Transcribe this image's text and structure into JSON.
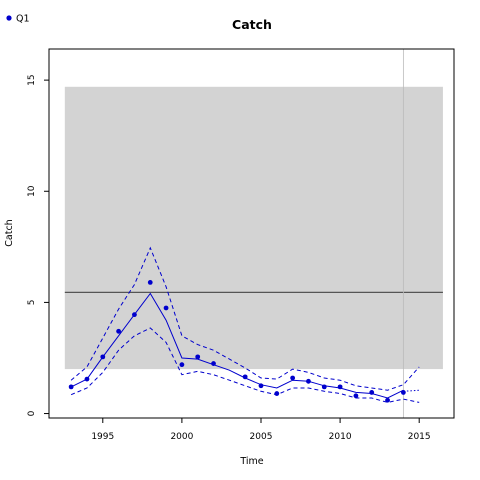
{
  "chart_data": {
    "type": "line",
    "title": "Catch",
    "xlabel": "Time",
    "ylabel": "Catch",
    "xlim": [
      1991.6,
      2017.2
    ],
    "ylim": [
      -0.2,
      16.4
    ],
    "x_ticks": [
      1995,
      2000,
      2005,
      2010,
      2015
    ],
    "y_ticks": [
      0,
      5,
      10,
      15
    ],
    "legend": {
      "position": "top-left",
      "entries": [
        {
          "label": "Q1",
          "color": "#0000cd"
        }
      ]
    },
    "shaded_region": {
      "x": [
        1992.6,
        2016.5
      ],
      "y": [
        2.0,
        14.7
      ],
      "color": "#d3d3d3"
    },
    "reference_line": {
      "y": 5.45,
      "color": "#555555"
    },
    "vertical_line": {
      "x": 2014.0,
      "color": "#bbbbbb"
    },
    "series": [
      {
        "name": "Q1",
        "kind": "points",
        "color": "#0000cd",
        "x": [
          1993,
          1994,
          1995,
          1996,
          1997,
          1998,
          1999,
          2000,
          2001,
          2002,
          2004,
          2005,
          2006,
          2007,
          2008,
          2009,
          2010,
          2011,
          2012,
          2013,
          2014
        ],
        "y": [
          1.2,
          1.55,
          2.55,
          3.7,
          4.45,
          5.9,
          4.75,
          2.2,
          2.55,
          2.25,
          1.65,
          1.25,
          0.9,
          1.6,
          1.45,
          1.2,
          1.2,
          0.8,
          0.95,
          0.6,
          0.95
        ]
      },
      {
        "kind": "fit",
        "color": "#0000cd",
        "x": [
          1993,
          1994,
          1995,
          1996,
          1997,
          1998,
          1999,
          2000,
          2001,
          2002,
          2003,
          2004,
          2005,
          2006,
          2007,
          2008,
          2009,
          2010,
          2011,
          2012,
          2013,
          2014
        ],
        "y": [
          1.2,
          1.55,
          2.55,
          3.5,
          4.45,
          5.4,
          4.2,
          2.5,
          2.45,
          2.2,
          1.95,
          1.6,
          1.3,
          1.15,
          1.5,
          1.45,
          1.25,
          1.15,
          0.95,
          0.9,
          0.7,
          1.05
        ]
      },
      {
        "kind": "upper",
        "color": "#0000cd",
        "x": [
          1993,
          1994,
          1995,
          1996,
          1997,
          1998,
          1999,
          2000,
          2001,
          2002,
          2003,
          2004,
          2005,
          2006,
          2007,
          2008,
          2009,
          2010,
          2011,
          2012,
          2013,
          2014,
          2015
        ],
        "y": [
          1.5,
          2.1,
          3.4,
          4.7,
          5.8,
          7.45,
          5.7,
          3.5,
          3.1,
          2.85,
          2.45,
          2.05,
          1.6,
          1.55,
          2.0,
          1.85,
          1.6,
          1.5,
          1.25,
          1.15,
          1.05,
          1.3,
          2.1
        ]
      },
      {
        "kind": "lower",
        "color": "#0000cd",
        "x": [
          1993,
          1994,
          1995,
          1996,
          1997,
          1998,
          1999,
          2000,
          2001,
          2002,
          2003,
          2004,
          2005,
          2006,
          2007,
          2008,
          2009,
          2010,
          2011,
          2012,
          2013,
          2014,
          2015
        ],
        "y": [
          0.85,
          1.15,
          1.85,
          2.85,
          3.5,
          3.85,
          3.2,
          1.75,
          1.9,
          1.75,
          1.5,
          1.25,
          1.0,
          0.85,
          1.15,
          1.15,
          1.0,
          0.9,
          0.7,
          0.7,
          0.5,
          0.65,
          0.5
        ]
      },
      {
        "kind": "projection",
        "color": "#0000cd",
        "x": [
          2014,
          2015
        ],
        "y": [
          1.0,
          1.05
        ]
      }
    ]
  }
}
